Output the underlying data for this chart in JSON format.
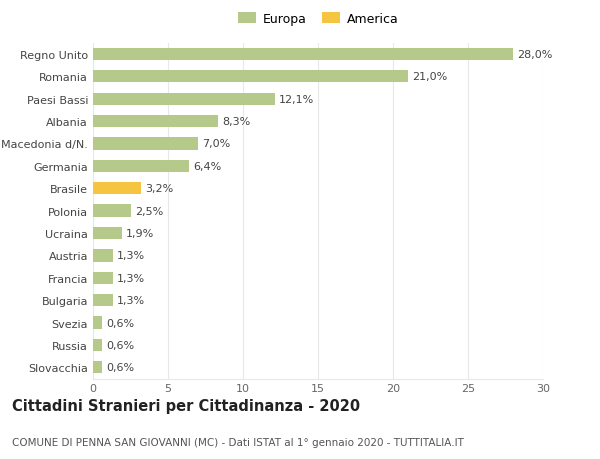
{
  "categories": [
    "Slovacchia",
    "Russia",
    "Svezia",
    "Bulgaria",
    "Francia",
    "Austria",
    "Ucraina",
    "Polonia",
    "Brasile",
    "Germania",
    "Macedonia d/N.",
    "Albania",
    "Paesi Bassi",
    "Romania",
    "Regno Unito"
  ],
  "values": [
    0.6,
    0.6,
    0.6,
    1.3,
    1.3,
    1.3,
    1.9,
    2.5,
    3.2,
    6.4,
    7.0,
    8.3,
    12.1,
    21.0,
    28.0
  ],
  "labels": [
    "0,6%",
    "0,6%",
    "0,6%",
    "1,3%",
    "1,3%",
    "1,3%",
    "1,9%",
    "2,5%",
    "3,2%",
    "6,4%",
    "7,0%",
    "8,3%",
    "12,1%",
    "21,0%",
    "28,0%"
  ],
  "colors": [
    "#b5c98a",
    "#b5c98a",
    "#b5c98a",
    "#b5c98a",
    "#b5c98a",
    "#b5c98a",
    "#b5c98a",
    "#b5c98a",
    "#f5c542",
    "#b5c98a",
    "#b5c98a",
    "#b5c98a",
    "#b5c98a",
    "#b5c98a",
    "#b5c98a"
  ],
  "legend": [
    {
      "label": "Europa",
      "color": "#b5c98a"
    },
    {
      "label": "America",
      "color": "#f5c542"
    }
  ],
  "title1": "Cittadini Stranieri per Cittadinanza - 2020",
  "title2": "COMUNE DI PENNA SAN GIOVANNI (MC) - Dati ISTAT al 1° gennaio 2020 - TUTTITALIA.IT",
  "xlim": [
    0,
    30
  ],
  "xticks": [
    0,
    5,
    10,
    15,
    20,
    25,
    30
  ],
  "bg_color": "#ffffff",
  "grid_color": "#e8e8e8",
  "bar_height": 0.55,
  "label_fontsize": 8,
  "tick_fontsize": 8,
  "title1_fontsize": 10.5,
  "title2_fontsize": 7.5
}
